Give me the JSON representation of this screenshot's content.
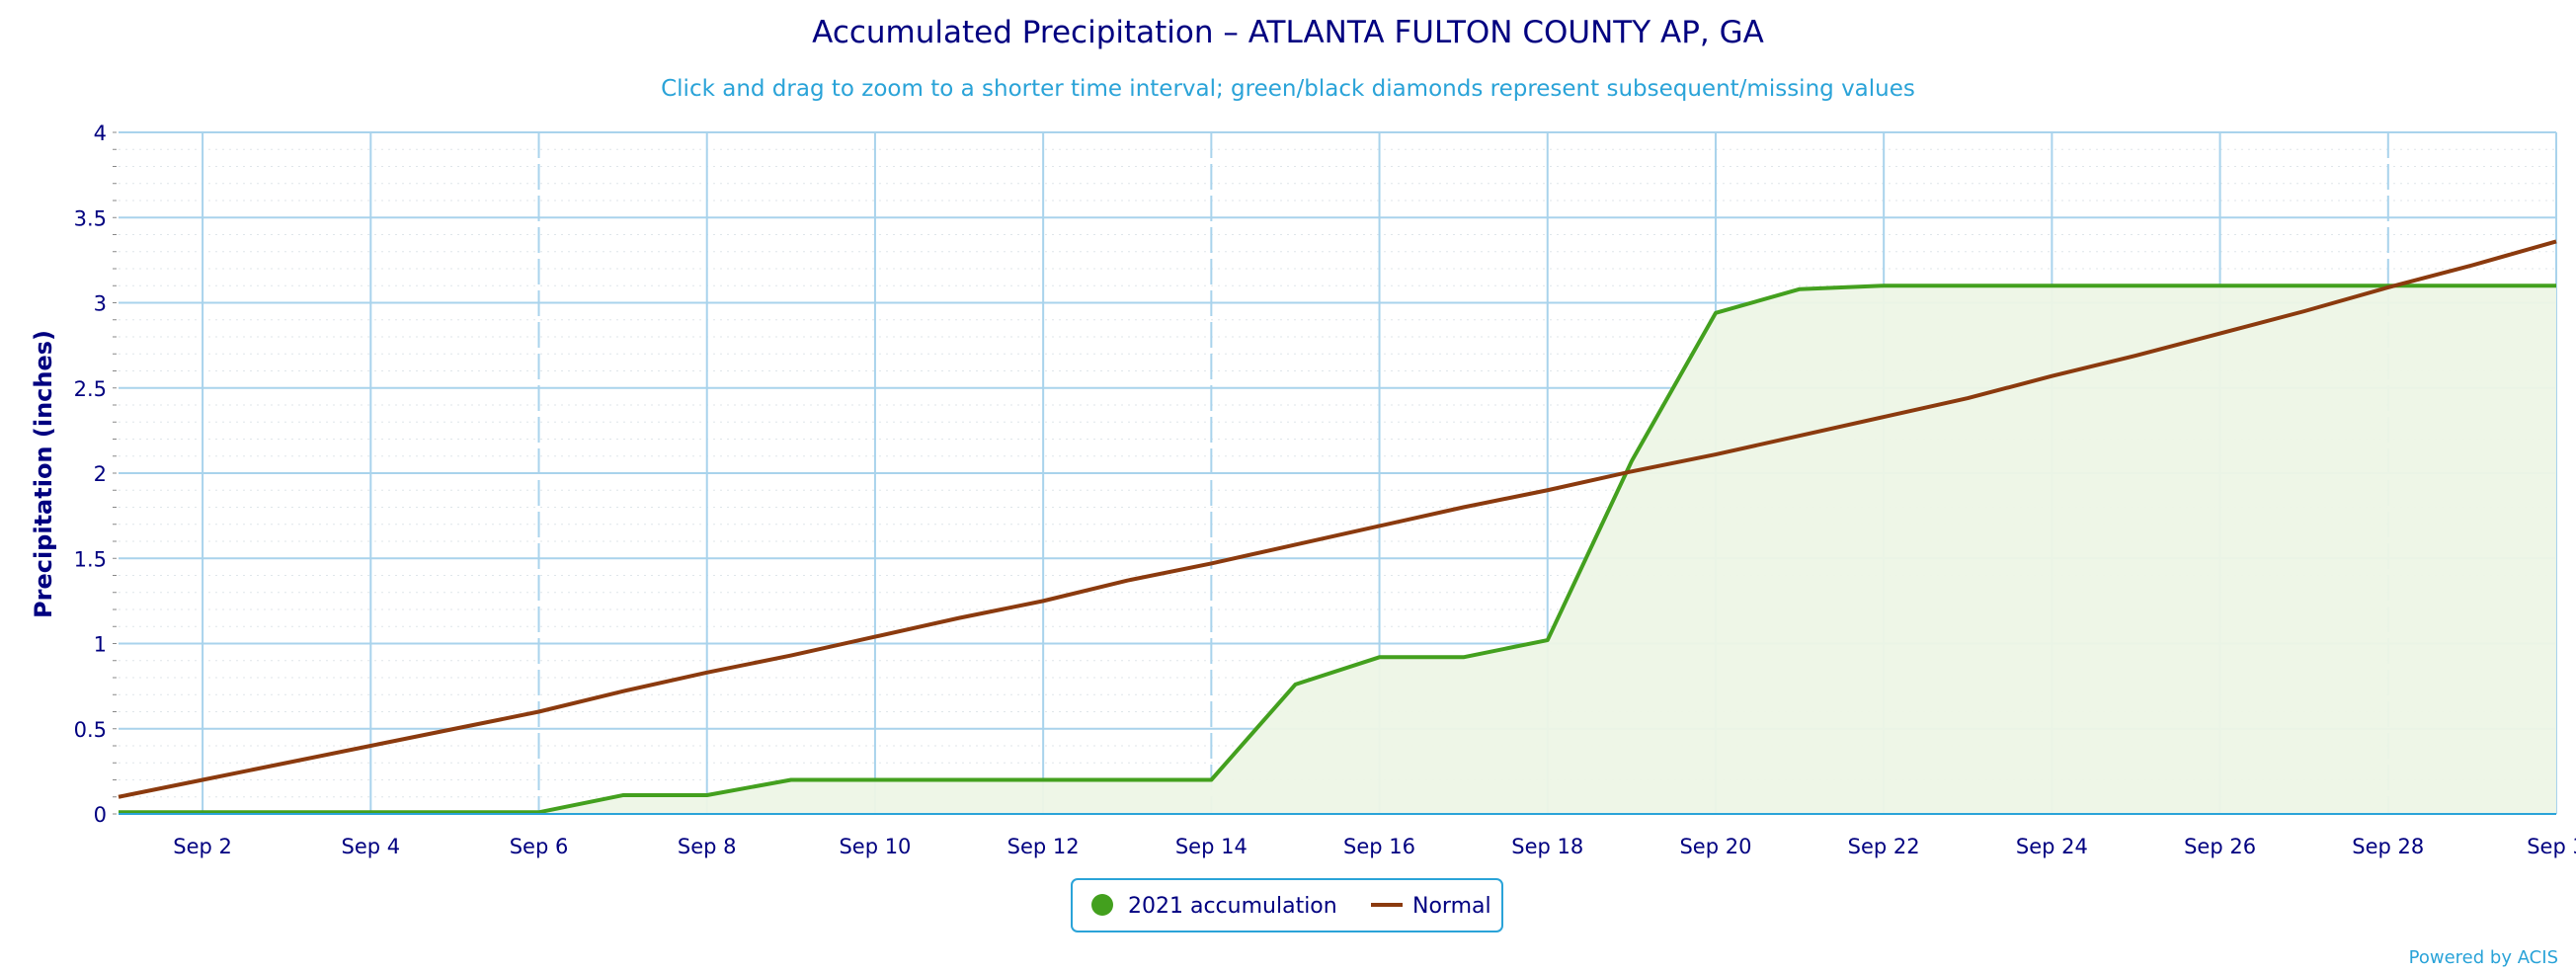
{
  "chart_data": {
    "type": "line",
    "title": "Accumulated Precipitation – ATLANTA FULTON COUNTY AP, GA",
    "subtitle": "Click and drag to zoom to a shorter time interval; green/black diamonds represent subsequent/missing values",
    "ylabel": "Precipitation (inches)",
    "xlabel": "",
    "ylim": [
      0,
      4
    ],
    "yticks": [
      "0",
      "0.5",
      "1",
      "1.5",
      "2",
      "2.5",
      "3",
      "3.5",
      "4"
    ],
    "x_range": [
      "Sep 1",
      "Sep 30"
    ],
    "xtick_labels": [
      "Sep 2",
      "Sep 4",
      "Sep 6",
      "Sep 8",
      "Sep 10",
      "Sep 12",
      "Sep 14",
      "Sep 16",
      "Sep 18",
      "Sep 20",
      "Sep 22",
      "Sep 24",
      "Sep 26",
      "Sep 28",
      "Sep 3"
    ],
    "xtick_days": [
      2,
      4,
      6,
      8,
      10,
      12,
      14,
      16,
      18,
      20,
      22,
      24,
      26,
      28,
      30
    ],
    "grid": true,
    "legend": "bottom-center",
    "series": [
      {
        "name": "2021 accumulation",
        "color": "#43a01e",
        "fill": "#edf5e6",
        "x": [
          1,
          2,
          3,
          4,
          5,
          6,
          7,
          8,
          9,
          10,
          11,
          12,
          13,
          14,
          15,
          16,
          17,
          18,
          19,
          20,
          21,
          22,
          23,
          24,
          25,
          26,
          27,
          28,
          29,
          30
        ],
        "values": [
          0.01,
          0.01,
          0.01,
          0.01,
          0.01,
          0.01,
          0.11,
          0.11,
          0.2,
          0.2,
          0.2,
          0.2,
          0.2,
          0.2,
          0.76,
          0.92,
          0.92,
          1.02,
          2.07,
          2.94,
          3.08,
          3.1,
          3.1,
          3.1,
          3.1,
          3.1,
          3.1,
          3.1,
          3.1,
          3.1
        ]
      },
      {
        "name": "Normal",
        "color": "#8b3a0e",
        "x": [
          1,
          2,
          3,
          4,
          5,
          6,
          7,
          8,
          9,
          10,
          11,
          12,
          13,
          14,
          15,
          16,
          17,
          18,
          19,
          20,
          21,
          22,
          23,
          24,
          25,
          26,
          27,
          28,
          29,
          30
        ],
        "values": [
          0.1,
          0.2,
          0.3,
          0.4,
          0.5,
          0.6,
          0.72,
          0.83,
          0.93,
          1.04,
          1.15,
          1.25,
          1.37,
          1.47,
          1.58,
          1.69,
          1.8,
          1.9,
          2.01,
          2.11,
          2.22,
          2.33,
          2.44,
          2.57,
          2.69,
          2.82,
          2.95,
          3.09,
          3.22,
          3.36
        ]
      }
    ],
    "credit": "Powered by ACIS"
  }
}
